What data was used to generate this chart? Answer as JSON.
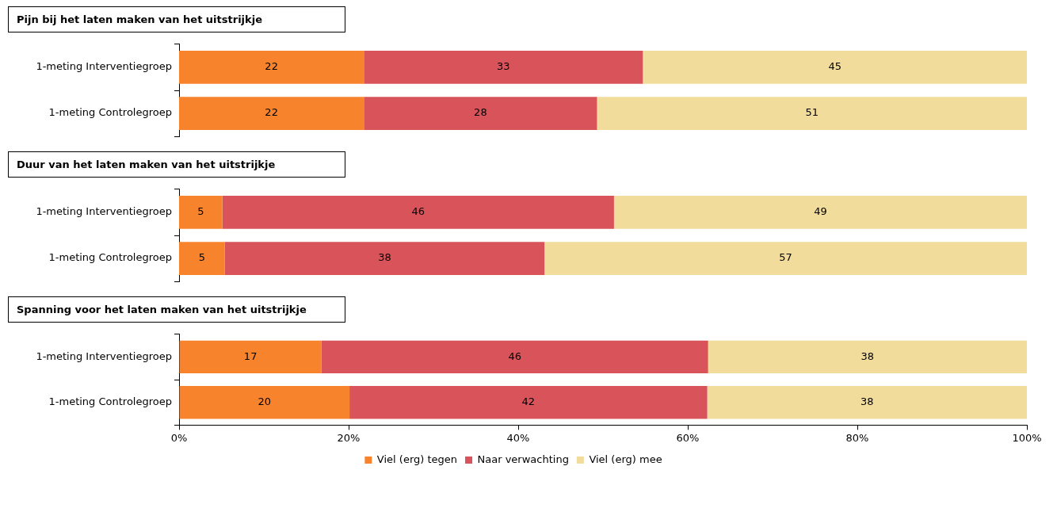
{
  "chart_data": [
    {
      "type": "bar",
      "orientation": "horizontal",
      "stacked": true,
      "title": "Pijn bij het laten maken van het uitstrijkje",
      "categories": [
        "1-meting Interventiegroep",
        "1-meting Controlegroep"
      ],
      "series": [
        {
          "color": "#f7832c",
          "values": [
            21.8,
            21.8
          ],
          "value_labels": [
            "22",
            "22"
          ]
        },
        {
          "color": "#d9545a",
          "values": [
            32.9,
            27.5
          ],
          "value_labels": [
            "33",
            "28"
          ]
        },
        {
          "color": "#f1dc9c",
          "values": [
            45.3,
            50.7
          ],
          "value_labels": [
            "45",
            "51"
          ]
        }
      ],
      "xlim": [
        0,
        100
      ],
      "tick_labels": "y",
      "grid": false,
      "legend": false
    },
    {
      "type": "bar",
      "orientation": "horizontal",
      "stacked": true,
      "title": "Duur van het laten maken van het uitstrijkje",
      "categories": [
        "1-meting Interventiegroep",
        "1-meting Controlegroep"
      ],
      "series": [
        {
          "color": "#f7832c",
          "values": [
            5.1,
            5.4
          ],
          "value_labels": [
            "5",
            "5"
          ]
        },
        {
          "color": "#d9545a",
          "values": [
            46.2,
            37.7
          ],
          "value_labels": [
            "46",
            "38"
          ]
        },
        {
          "color": "#f1dc9c",
          "values": [
            48.7,
            56.9
          ],
          "value_labels": [
            "49",
            "57"
          ]
        }
      ],
      "xlim": [
        0,
        100
      ],
      "tick_labels": "y",
      "grid": false,
      "legend": false
    },
    {
      "type": "bar",
      "orientation": "horizontal",
      "stacked": true,
      "title": "Spanning voor het laten maken van het uitstrijkje",
      "categories": [
        "1-meting Interventiegroep",
        "1-meting Controlegroep"
      ],
      "series": [
        {
          "name": "Viel (erg) tegen",
          "color": "#f7832c",
          "values": [
            16.8,
            20.1
          ],
          "value_labels": [
            "17",
            "20"
          ]
        },
        {
          "name": "Naar verwachting",
          "color": "#d9545a",
          "values": [
            45.6,
            42.2
          ],
          "value_labels": [
            "46",
            "42"
          ]
        },
        {
          "name": "Viel (erg) mee",
          "color": "#f1dc9c",
          "values": [
            37.6,
            37.7
          ],
          "value_labels": [
            "38",
            "38"
          ]
        }
      ],
      "xlim": [
        0,
        100
      ],
      "xticks": [
        {
          "value": 0,
          "label": "0%"
        },
        {
          "value": 20,
          "label": "20%"
        },
        {
          "value": 40,
          "label": "40%"
        },
        {
          "value": 60,
          "label": "60%"
        },
        {
          "value": 80,
          "label": "80%"
        },
        {
          "value": 100,
          "label": "100%"
        }
      ],
      "grid": false,
      "legend": "bottom"
    }
  ]
}
